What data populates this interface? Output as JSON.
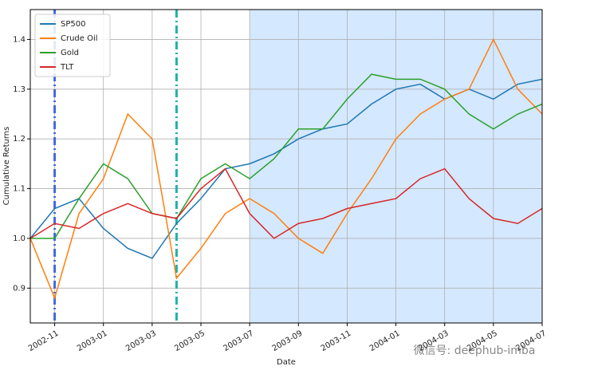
{
  "chart_data": {
    "type": "line",
    "ylabel": "Cumulative Returns",
    "xlabel": "Date",
    "x": [
      "2002-10",
      "2002-11",
      "2002-12",
      "2003-01",
      "2003-02",
      "2003-03",
      "2003-04",
      "2003-05",
      "2003-06",
      "2003-07",
      "2003-08",
      "2003-09",
      "2003-10",
      "2003-11",
      "2003-12",
      "2004-01",
      "2004-02",
      "2004-03",
      "2004-04",
      "2004-05",
      "2004-06",
      "2004-07"
    ],
    "series": [
      {
        "name": "SP500",
        "color": "#1f77b4",
        "values": [
          1.0,
          1.06,
          1.08,
          1.02,
          0.98,
          0.96,
          1.03,
          1.08,
          1.14,
          1.15,
          1.17,
          1.2,
          1.22,
          1.23,
          1.27,
          1.3,
          1.31,
          1.28,
          1.3,
          1.28,
          1.31,
          1.32
        ]
      },
      {
        "name": "Crude Oil",
        "color": "#ff7f0e",
        "values": [
          1.0,
          0.88,
          1.05,
          1.12,
          1.25,
          1.2,
          0.92,
          0.98,
          1.05,
          1.08,
          1.05,
          1.0,
          0.97,
          1.05,
          1.12,
          1.2,
          1.25,
          1.28,
          1.3,
          1.4,
          1.3,
          1.25
        ]
      },
      {
        "name": "Gold",
        "color": "#2ca02c",
        "values": [
          1.0,
          1.0,
          1.08,
          1.15,
          1.12,
          1.05,
          1.04,
          1.12,
          1.15,
          1.12,
          1.16,
          1.22,
          1.22,
          1.28,
          1.33,
          1.32,
          1.32,
          1.3,
          1.25,
          1.22,
          1.25,
          1.27
        ]
      },
      {
        "name": "TLT",
        "color": "#d62728",
        "values": [
          1.0,
          1.03,
          1.02,
          1.05,
          1.07,
          1.05,
          1.04,
          1.1,
          1.14,
          1.05,
          1.0,
          1.03,
          1.04,
          1.06,
          1.07,
          1.08,
          1.12,
          1.14,
          1.08,
          1.04,
          1.03,
          1.06
        ]
      }
    ],
    "xlim": [
      "2002-10",
      "2004-07"
    ],
    "xticks": [
      "2002-11",
      "2003-01",
      "2003-03",
      "2003-05",
      "2003-07",
      "2003-09",
      "2003-11",
      "2004-01",
      "2004-03",
      "2004-05",
      "2004-07"
    ],
    "ylim": [
      0.83,
      1.46
    ],
    "yticks": [
      0.9,
      {
        "value": 1,
        "label": "1.0"
      },
      1.1,
      1.2,
      1.3,
      1.4
    ],
    "grid": true,
    "legend": "upper left",
    "vlines": [
      {
        "x": "2002-11",
        "color": "#4169e1"
      },
      {
        "x": "2003-04",
        "color": "#20b2aa"
      }
    ],
    "shade": {
      "from": "2003-07",
      "to": "2004-07",
      "color": "#d4e8ff"
    },
    "annotation": "微信号: deephub-imba"
  }
}
